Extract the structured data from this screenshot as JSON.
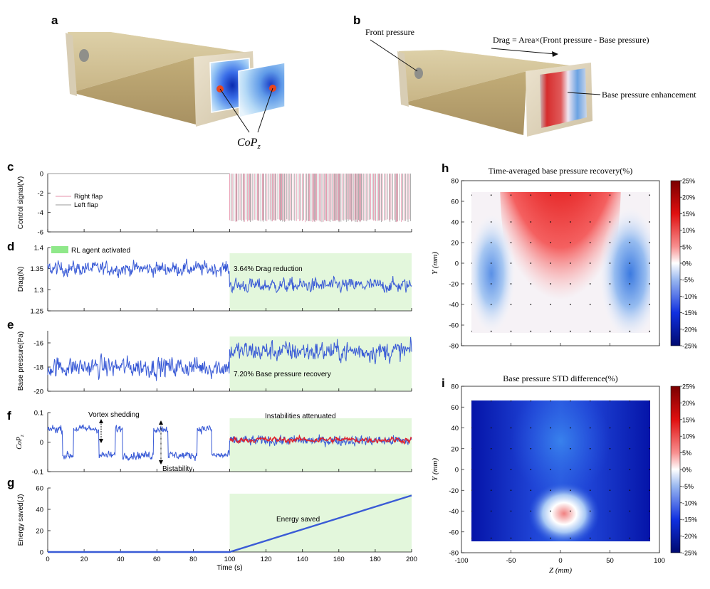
{
  "panel_letters": [
    "a",
    "b",
    "c",
    "d",
    "e",
    "f",
    "g",
    "h",
    "i"
  ],
  "panel_a": {
    "label": "CoP",
    "label_sub": "z"
  },
  "panel_b": {
    "front_label": "Front pressure",
    "drag_formula": "Drag = Area×(Front pressure - Base pressure)",
    "enhance_label": "Base pressure enhancement"
  },
  "colors": {
    "blue": "#3a5bd6",
    "red": "#e0202a",
    "pink": "#e68fa8",
    "gray": "#9a9a9a",
    "shade": "#e3f7dc",
    "legend_green": "#8fe88a"
  },
  "chart_data": [
    {
      "id": "c",
      "type": "line",
      "ylabel": "Control signal(V)",
      "xlim": [
        0,
        200
      ],
      "ylim": [
        -6,
        0
      ],
      "yticks": [
        0,
        -2,
        -4,
        -6
      ],
      "legend": [
        "Right flap",
        "Left flap"
      ],
      "series": [
        {
          "name": "Right flap",
          "description": "0 V before t=100 s, switching between 0 and about -5 V after"
        },
        {
          "name": "Left flap",
          "description": "0 V before t=100 s, switching between 0 and about -5 V after"
        }
      ]
    },
    {
      "id": "d",
      "type": "line",
      "ylabel": "Drag(N)",
      "xlim": [
        0,
        200
      ],
      "ylim": [
        1.25,
        1.4
      ],
      "yticks": [
        1.4,
        1.35,
        1.3,
        1.25
      ],
      "legend": [
        "RL agent activated"
      ],
      "annotation": "3.64% Drag reduction",
      "segments": [
        {
          "x": [
            0,
            100
          ],
          "mean": 1.35
        },
        {
          "x": [
            100,
            200
          ],
          "mean": 1.31
        }
      ],
      "shade": [
        100,
        200
      ]
    },
    {
      "id": "e",
      "type": "line",
      "ylabel": "Base pressure(Pa)",
      "xlim": [
        0,
        200
      ],
      "ylim": [
        -20,
        -15
      ],
      "yticks": [
        -16,
        -18,
        -20
      ],
      "annotation": "7.20%  Base pressure recovery",
      "segments": [
        {
          "x": [
            0,
            100
          ],
          "mean": -18.0
        },
        {
          "x": [
            100,
            200
          ],
          "mean": -16.7
        }
      ],
      "shade": [
        100,
        200
      ]
    },
    {
      "id": "f",
      "type": "line",
      "ylabel": "CoP",
      "ylabel_sub": "z",
      "xlim": [
        0,
        200
      ],
      "ylim": [
        -0.1,
        0.1
      ],
      "yticks": [
        0.1,
        0,
        -0.1
      ],
      "annotations": [
        "Vortex shedding",
        "Bistability",
        "Instabilities attenuated"
      ],
      "shade": [
        100,
        200
      ]
    },
    {
      "id": "g",
      "type": "line",
      "ylabel": "Energy saved(J)",
      "xlabel": "Time (s)",
      "xlim": [
        0,
        200
      ],
      "ylim": [
        0,
        60
      ],
      "xticks": [
        0,
        20,
        40,
        60,
        80,
        100,
        120,
        140,
        160,
        180,
        200
      ],
      "yticks": [
        0,
        20,
        40,
        60
      ],
      "annotation": "Energy saved",
      "x": [
        0,
        100,
        200
      ],
      "y": [
        0,
        0,
        53
      ],
      "shade": [
        100,
        200
      ]
    },
    {
      "id": "h",
      "type": "heatmap",
      "title": "Time-averaged base pressure recovery(%)",
      "xlabel": "Z (mm)",
      "ylabel": "Y (mm)",
      "xlim": [
        -100,
        100
      ],
      "ylim": [
        -80,
        80
      ],
      "yticks": [
        80,
        60,
        40,
        20,
        0,
        -20,
        -40,
        -60,
        -80
      ],
      "colorbar": {
        "range": [
          -25,
          25
        ],
        "ticks": [
          "25%",
          "20%",
          "15%",
          "10%",
          "5%",
          "0%",
          "-5%",
          "-10%",
          "-15%",
          "-20%",
          "-25%"
        ]
      }
    },
    {
      "id": "i",
      "type": "heatmap",
      "title": "Base pressure STD difference(%)",
      "xlabel": "Z (mm)",
      "ylabel": "Y (mm)",
      "xlim": [
        -100,
        100
      ],
      "ylim": [
        -80,
        80
      ],
      "xticks": [
        -100,
        -50,
        0,
        50,
        100
      ],
      "yticks": [
        80,
        60,
        40,
        20,
        0,
        -20,
        -40,
        -60,
        -80
      ],
      "colorbar": {
        "range": [
          -25,
          25
        ],
        "ticks": [
          "25%",
          "20%",
          "15%",
          "10%",
          "5%",
          "0%",
          "-5%",
          "-10%",
          "-15%",
          "-20%",
          "-25%"
        ]
      }
    }
  ]
}
